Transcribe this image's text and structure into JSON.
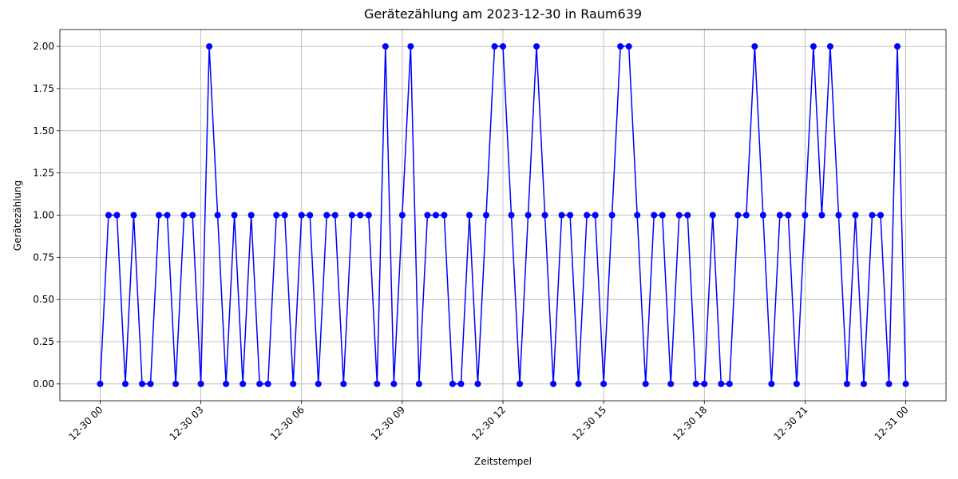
{
  "chart_data": {
    "type": "line",
    "title": "Gerätezählung am 2023-12-30 in Raum639",
    "x_label": "Zeitstempel",
    "y_label": "Gerätezählung",
    "x": [
      0,
      0.25,
      0.5,
      0.75,
      1,
      1.25,
      1.5,
      1.75,
      2,
      2.25,
      2.5,
      2.75,
      3,
      3.25,
      3.5,
      3.75,
      4,
      4.25,
      4.5,
      4.75,
      5,
      5.25,
      5.5,
      5.75,
      6,
      6.25,
      6.5,
      6.75,
      7,
      7.25,
      7.5,
      7.75,
      8,
      8.25,
      8.5,
      8.75,
      9,
      9.25,
      9.5,
      9.75,
      10,
      10.25,
      10.5,
      10.75,
      11,
      11.25,
      11.5,
      11.75,
      12,
      12.25,
      12.5,
      12.75,
      13,
      13.25,
      13.5,
      13.75,
      14,
      14.25,
      14.5,
      14.75,
      15,
      15.25,
      15.5,
      15.75,
      16,
      16.25,
      16.5,
      16.75,
      17,
      17.25,
      17.5,
      17.75,
      18,
      18.25,
      18.5,
      18.75,
      19,
      19.25,
      19.5,
      19.75,
      20,
      20.25,
      20.5,
      20.75,
      21,
      21.25,
      21.5,
      21.75,
      22,
      22.25,
      22.5,
      22.75,
      23,
      23.25,
      23.5,
      23.75,
      24
    ],
    "series": [
      {
        "color": "#0000ff",
        "values": [
          0,
          1,
          1,
          0,
          1,
          0,
          0,
          1,
          1,
          0,
          1,
          1,
          0,
          2,
          1,
          0,
          1,
          0,
          1,
          0,
          0,
          1,
          1,
          0,
          1,
          1,
          0,
          1,
          1,
          0,
          1,
          1,
          1,
          0,
          2,
          0,
          1,
          2,
          0,
          1,
          1,
          1,
          0,
          0,
          1,
          0,
          1,
          2,
          2,
          1,
          0,
          1,
          2,
          1,
          0,
          1,
          1,
          0,
          1,
          1,
          0,
          1,
          2,
          2,
          1,
          0,
          1,
          1,
          0,
          1,
          1,
          0,
          0,
          1,
          0,
          0,
          1,
          1,
          2,
          1,
          0,
          1,
          1,
          0,
          1,
          2,
          1,
          2,
          1,
          0,
          1,
          0,
          1,
          1,
          0,
          2,
          0
        ]
      }
    ],
    "xlim": [
      -1.2,
      25.2
    ],
    "xticks": [
      {
        "value": 0,
        "label": "12-30 00"
      },
      {
        "value": 3,
        "label": "12-30 03"
      },
      {
        "value": 6,
        "label": "12-30 06"
      },
      {
        "value": 9,
        "label": "12-30 09"
      },
      {
        "value": 12,
        "label": "12-30 12"
      },
      {
        "value": 15,
        "label": "12-30 15"
      },
      {
        "value": 18,
        "label": "12-30 18"
      },
      {
        "value": 21,
        "label": "12-30 21"
      },
      {
        "value": 24,
        "label": "12-31 00"
      }
    ],
    "ylim": [
      -0.1,
      2.1
    ],
    "yticks": [
      {
        "value": 0,
        "label": "0.00"
      },
      {
        "value": 0.25,
        "label": "0.25"
      },
      {
        "value": 0.5,
        "label": "0.50"
      },
      {
        "value": 0.75,
        "label": "0.75"
      },
      {
        "value": 1,
        "label": "1.00"
      },
      {
        "value": 1.25,
        "label": "1.25"
      },
      {
        "value": 1.5,
        "label": "1.50"
      },
      {
        "value": 1.75,
        "label": "1.75"
      },
      {
        "value": 2,
        "label": "2.00"
      }
    ],
    "grid": true
  }
}
